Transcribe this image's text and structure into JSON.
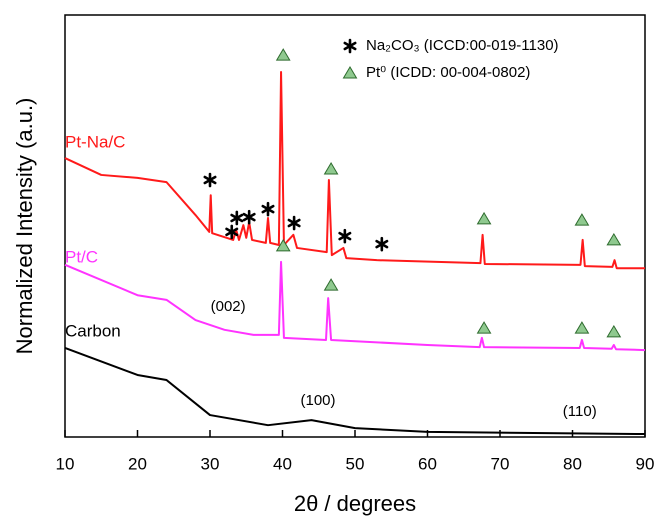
{
  "chart_data": {
    "type": "line",
    "x_label": "2θ / degrees",
    "y_label": "Normalized Intensity (a.u.)",
    "xlim": [
      10,
      90
    ],
    "ylim": [
      0,
      100
    ],
    "xticks": [
      10,
      20,
      30,
      40,
      50,
      60,
      70,
      80,
      90
    ],
    "series": [
      {
        "name": "Pt-Na/C",
        "color": "#ff1a1a",
        "x": [
          10,
          15,
          20,
          24,
          28,
          29.9,
          30.1,
          30.3,
          33.2,
          33.6,
          34,
          34.6,
          35,
          35.4,
          35.8,
          37.7,
          38,
          38.3,
          39.5,
          39.8,
          40.2,
          41.5,
          42,
          46.1,
          46.4,
          46.8,
          48.4,
          48.8,
          53,
          67.3,
          67.6,
          67.9,
          81.1,
          81.4,
          81.7,
          85.5,
          85.8,
          86.1,
          90
        ],
        "values": [
          66.1,
          62.1,
          61.4,
          60.4,
          52.6,
          48.6,
          57.3,
          48.3,
          46.7,
          49.1,
          46.7,
          50.2,
          47.2,
          50.9,
          46.7,
          46.0,
          51.9,
          46.0,
          45.5,
          86.5,
          45.5,
          47.9,
          44.8,
          43.8,
          60.9,
          43.1,
          44.8,
          42.4,
          41.9,
          41.2,
          47.9,
          41.0,
          40.8,
          46.7,
          40.5,
          40.3,
          41.9,
          40.0,
          40.0
        ]
      },
      {
        "name": "Pt/C",
        "color": "#ff33ff",
        "x": [
          10,
          20,
          24,
          28,
          32,
          36,
          39.5,
          39.8,
          40.2,
          46,
          46.3,
          46.7,
          60,
          67.2,
          67.5,
          67.8,
          81,
          81.3,
          81.6,
          85.4,
          85.7,
          86,
          90
        ],
        "values": [
          40.8,
          33.6,
          32.5,
          27.7,
          25.4,
          24.2,
          24.2,
          41.5,
          23.5,
          23.0,
          32.9,
          23.0,
          21.8,
          21.3,
          23.5,
          21.3,
          21.1,
          23.0,
          21.1,
          20.9,
          21.8,
          20.8,
          20.6
        ]
      },
      {
        "name": "Carbon",
        "color": "#000000",
        "x": [
          10,
          20,
          24,
          30,
          38,
          44,
          50,
          60,
          90
        ],
        "values": [
          21.1,
          14.7,
          13.5,
          5.2,
          2.8,
          4.0,
          2.1,
          1.2,
          0.7
        ]
      }
    ],
    "annotations": [
      {
        "text": "(002)",
        "x": 32.5,
        "y": 30.8
      },
      {
        "text": "(100)",
        "x": 44.9,
        "y": 8.5
      },
      {
        "text": "(110)",
        "x": 81.0,
        "y": 5.9
      }
    ],
    "peak_markers": [
      {
        "symbol": "star",
        "x": [
          30.0,
          33.0,
          33.7,
          35.4,
          38.0,
          41.6,
          48.6,
          53.7
        ],
        "y": [
          60.9,
          48.6,
          51.9,
          52.1,
          54.0,
          50.7,
          47.6,
          45.7
        ]
      },
      {
        "symbol": "triangle",
        "x": [
          40.1,
          46.7,
          67.8,
          81.3,
          85.7
        ],
        "y": [
          90.5,
          63.5,
          51.7,
          51.4,
          46.7
        ]
      },
      {
        "symbol": "triangle",
        "x": [
          40.1,
          46.7,
          67.8,
          81.3,
          85.7
        ],
        "y": [
          45.3,
          36.0,
          25.8,
          25.8,
          24.9
        ]
      }
    ],
    "legend": {
      "location": "upper right",
      "entries": [
        {
          "symbol": "star",
          "label": "Na₂CO₃ (ICCD:00-019-1130)"
        },
        {
          "symbol": "triangle",
          "label": "Pt⁰ (ICDD: 00-004-0802)"
        }
      ]
    }
  }
}
